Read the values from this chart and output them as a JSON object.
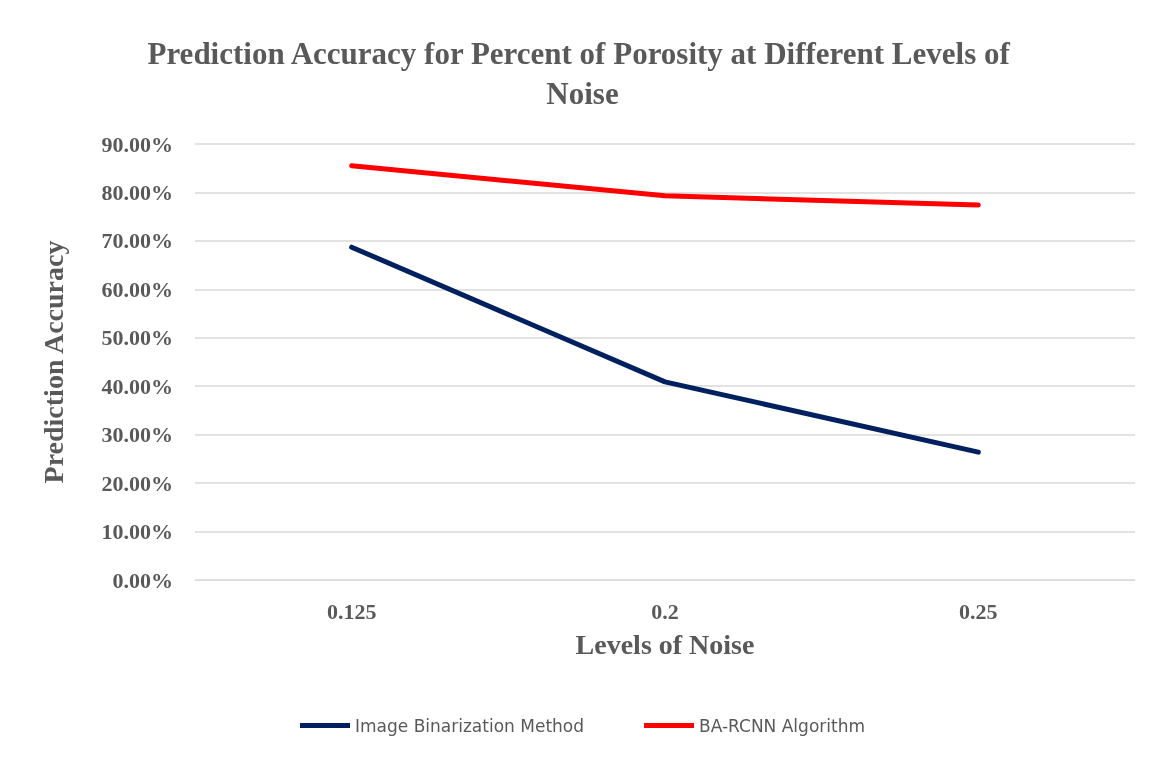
{
  "chart_data": {
    "type": "line",
    "title": "Prediction Accuracy for Percent of Porosity at Different Levels of Noise",
    "xlabel": "Levels of Noise",
    "ylabel": "Prediction Accuracy",
    "categories": [
      "0.125",
      "0.2",
      "0.25"
    ],
    "series": [
      {
        "name": "Image Binarization Method",
        "color": "#002060",
        "values": [
          68.7,
          40.9,
          26.4
        ]
      },
      {
        "name": "BA-RCNN Algorithm",
        "color": "#ff0000",
        "values": [
          85.5,
          79.3,
          77.4
        ]
      }
    ],
    "ylim": [
      0,
      90
    ],
    "yticks": [
      {
        "value": 0,
        "label": "0.00%"
      },
      {
        "value": 10,
        "label": "10.00%"
      },
      {
        "value": 20,
        "label": "20.00%"
      },
      {
        "value": 30,
        "label": "30.00%"
      },
      {
        "value": 40,
        "label": "40.00%"
      },
      {
        "value": 50,
        "label": "50.00%"
      },
      {
        "value": 60,
        "label": "60.00%"
      },
      {
        "value": 70,
        "label": "70.00%"
      },
      {
        "value": 80,
        "label": "80.00%"
      },
      {
        "value": 90,
        "label": "90.00%"
      }
    ],
    "grid": "y",
    "legend": "bottom",
    "marker": "none",
    "line_style": "solid"
  }
}
